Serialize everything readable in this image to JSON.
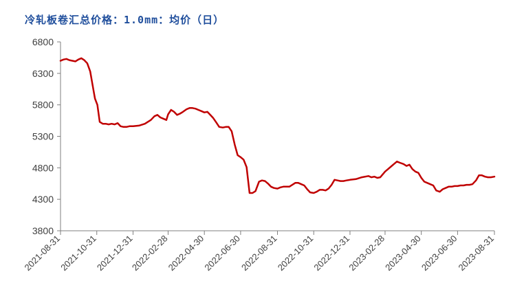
{
  "chart_data": {
    "type": "line",
    "title": "冷轧板卷汇总价格：1.0mm：均价（日）",
    "xlabel": "",
    "ylabel": "",
    "ylim": [
      3800,
      6800
    ],
    "yticks": [
      3800,
      4300,
      4800,
      5300,
      5800,
      6300,
      6800
    ],
    "xticks": [
      "2021-08-31",
      "2021-10-31",
      "2021-12-31",
      "2022-02-28",
      "2022-04-30",
      "2022-06-30",
      "2022-08-31",
      "2022-10-31",
      "2022-12-31",
      "2023-02-28",
      "2023-04-30",
      "2023-06-30",
      "2023-08-31"
    ],
    "grid": false,
    "legend": "none",
    "colors": {
      "line": "#c00000",
      "axis": "#7f7f7f",
      "title": "#1f4e9c"
    },
    "series": [
      {
        "x": [
          "2021-08-31",
          "2021-09-05",
          "2021-09-10",
          "2021-09-15",
          "2021-09-20",
          "2021-09-25",
          "2021-09-30",
          "2021-10-05",
          "2021-10-10",
          "2021-10-15",
          "2021-10-20",
          "2021-10-25",
          "2021-10-28",
          "2021-11-01",
          "2021-11-05",
          "2021-11-10",
          "2021-11-15",
          "2021-11-20",
          "2021-11-25",
          "2021-11-30",
          "2021-12-05",
          "2021-12-10",
          "2021-12-15",
          "2021-12-20",
          "2021-12-25",
          "2021-12-31",
          "2022-01-10",
          "2022-01-20",
          "2022-01-30",
          "2022-02-05",
          "2022-02-10",
          "2022-02-15",
          "2022-02-20",
          "2022-02-25",
          "2022-02-28",
          "2022-03-05",
          "2022-03-10",
          "2022-03-15",
          "2022-03-20",
          "2022-03-25",
          "2022-03-31",
          "2022-04-05",
          "2022-04-10",
          "2022-04-15",
          "2022-04-20",
          "2022-04-25",
          "2022-04-30",
          "2022-05-05",
          "2022-05-10",
          "2022-05-15",
          "2022-05-20",
          "2022-05-25",
          "2022-05-31",
          "2022-06-05",
          "2022-06-10",
          "2022-06-15",
          "2022-06-20",
          "2022-06-25",
          "2022-06-30",
          "2022-07-05",
          "2022-07-10",
          "2022-07-15",
          "2022-07-20",
          "2022-07-25",
          "2022-07-31",
          "2022-08-05",
          "2022-08-10",
          "2022-08-15",
          "2022-08-20",
          "2022-08-25",
          "2022-08-31",
          "2022-09-05",
          "2022-09-10",
          "2022-09-15",
          "2022-09-20",
          "2022-09-25",
          "2022-09-30",
          "2022-10-05",
          "2022-10-10",
          "2022-10-15",
          "2022-10-20",
          "2022-10-25",
          "2022-10-31",
          "2022-11-05",
          "2022-11-10",
          "2022-11-15",
          "2022-11-20",
          "2022-11-25",
          "2022-11-30",
          "2022-12-05",
          "2022-12-10",
          "2022-12-15",
          "2022-12-20",
          "2022-12-25",
          "2022-12-31",
          "2023-01-10",
          "2023-01-20",
          "2023-01-31",
          "2023-02-05",
          "2023-02-10",
          "2023-02-15",
          "2023-02-20",
          "2023-02-28",
          "2023-03-05",
          "2023-03-10",
          "2023-03-15",
          "2023-03-20",
          "2023-03-25",
          "2023-03-31",
          "2023-04-05",
          "2023-04-10",
          "2023-04-15",
          "2023-04-20",
          "2023-04-25",
          "2023-04-30",
          "2023-05-05",
          "2023-05-10",
          "2023-05-15",
          "2023-05-20",
          "2023-05-25",
          "2023-05-31",
          "2023-06-05",
          "2023-06-10",
          "2023-06-15",
          "2023-06-20",
          "2023-06-25",
          "2023-06-30",
          "2023-07-05",
          "2023-07-10",
          "2023-07-15",
          "2023-07-20",
          "2023-07-25",
          "2023-07-31",
          "2023-08-05",
          "2023-08-10",
          "2023-08-15",
          "2023-08-20",
          "2023-08-25",
          "2023-08-31"
        ],
        "values": [
          6500,
          6520,
          6530,
          6510,
          6500,
          6490,
          6520,
          6540,
          6510,
          6460,
          6330,
          6060,
          5900,
          5800,
          5530,
          5500,
          5500,
          5490,
          5500,
          5490,
          5510,
          5460,
          5450,
          5450,
          5460,
          5460,
          5470,
          5500,
          5560,
          5620,
          5640,
          5600,
          5580,
          5560,
          5650,
          5720,
          5690,
          5640,
          5660,
          5690,
          5730,
          5750,
          5750,
          5740,
          5720,
          5700,
          5680,
          5690,
          5640,
          5590,
          5520,
          5450,
          5440,
          5450,
          5450,
          5380,
          5170,
          5000,
          4970,
          4930,
          4810,
          4400,
          4400,
          4430,
          4580,
          4600,
          4590,
          4550,
          4500,
          4480,
          4470,
          4490,
          4500,
          4500,
          4500,
          4530,
          4560,
          4560,
          4540,
          4520,
          4460,
          4410,
          4400,
          4420,
          4450,
          4450,
          4440,
          4470,
          4530,
          4610,
          4600,
          4590,
          4590,
          4600,
          4610,
          4620,
          4650,
          4670,
          4650,
          4660,
          4640,
          4650,
          4740,
          4780,
          4820,
          4860,
          4900,
          4880,
          4860,
          4830,
          4850,
          4780,
          4740,
          4720,
          4640,
          4580,
          4560,
          4540,
          4520,
          4440,
          4420,
          4460,
          4480,
          4500,
          4500,
          4510,
          4510,
          4520,
          4520,
          4530,
          4530,
          4540,
          4600,
          4680,
          4680,
          4660,
          4650,
          4650,
          4660
        ]
      }
    ]
  }
}
